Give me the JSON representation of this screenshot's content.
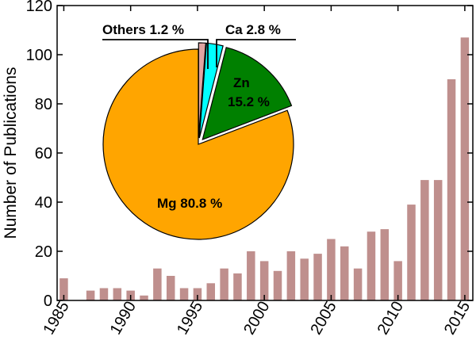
{
  "chart_data": [
    {
      "type": "bar",
      "title": "",
      "xlabel": "",
      "ylabel": "Number of Publications",
      "xlim": [
        1984.5,
        2015.6
      ],
      "ylim": [
        0,
        120
      ],
      "x_ticks": [
        1985,
        1990,
        1995,
        2000,
        2005,
        2010,
        2015
      ],
      "y_ticks": [
        0,
        20,
        40,
        60,
        80,
        100,
        120
      ],
      "grid": false,
      "x": [
        1985,
        1986,
        1987,
        1988,
        1989,
        1990,
        1991,
        1992,
        1993,
        1994,
        1995,
        1996,
        1997,
        1998,
        1999,
        2000,
        2001,
        2002,
        2003,
        2004,
        2005,
        2006,
        2007,
        2008,
        2009,
        2010,
        2011,
        2012,
        2013,
        2014,
        2015
      ],
      "values": [
        9,
        0,
        4,
        5,
        5,
        4,
        2,
        13,
        10,
        5,
        5,
        7,
        13,
        11,
        20,
        16,
        12,
        20,
        17,
        19,
        25,
        22,
        13,
        28,
        29,
        16,
        39,
        49,
        49,
        90,
        107
      ],
      "bar_color": "#bf8f8d"
    },
    {
      "type": "pie",
      "slices": [
        {
          "name": "Mg",
          "percent": 80.8,
          "label": "Mg 80.8 %",
          "color": "#ffa500",
          "exploded": false
        },
        {
          "name": "Zn",
          "percent": 15.2,
          "label_line1": "Zn",
          "label_line2": "15.2 %",
          "color": "#008000",
          "exploded": true
        },
        {
          "name": "Ca",
          "percent": 2.8,
          "label": "Ca 2.8 %",
          "color": "#00ffff",
          "exploded": true
        },
        {
          "name": "Others",
          "percent": 1.2,
          "label": "Others 1.2 %",
          "color": "#dfa5a2",
          "exploded": true
        }
      ]
    }
  ]
}
